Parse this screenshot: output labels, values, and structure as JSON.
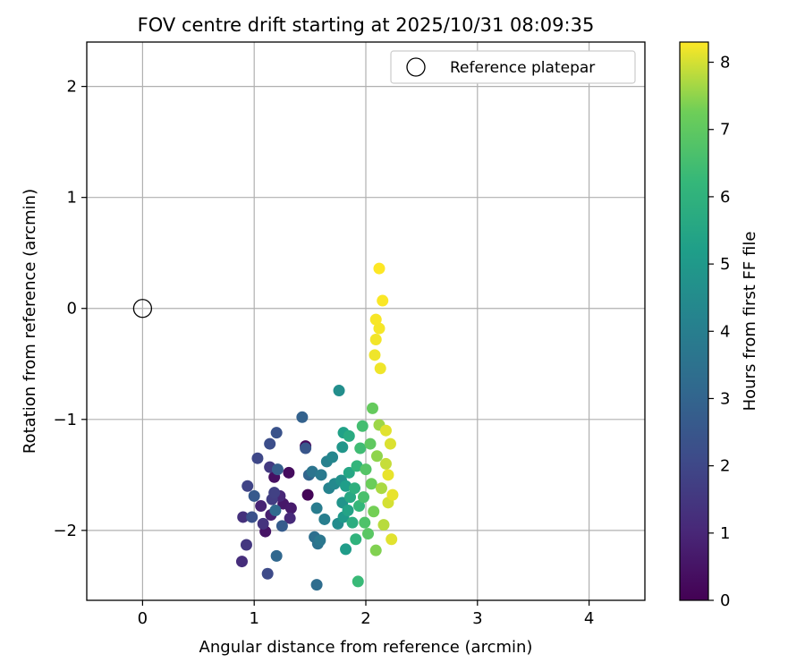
{
  "chart_data": {
    "type": "scatter",
    "title": "FOV centre drift starting at 2025/10/31 08:09:35",
    "xlabel": "Angular distance from reference (arcmin)",
    "ylabel": "Rotation from reference (arcmin)",
    "xlim": [
      -0.5,
      4.5
    ],
    "ylim": [
      -2.63,
      2.4
    ],
    "xticks": [
      0,
      1,
      2,
      3,
      4
    ],
    "xtick_labels": [
      "0",
      "1",
      "2",
      "3",
      "4"
    ],
    "yticks": [
      -2,
      -1,
      0,
      1,
      2
    ],
    "ytick_labels": [
      "−2",
      "−1",
      "0",
      "1",
      "2"
    ],
    "grid": true,
    "legend": {
      "placement": "top-right",
      "entries": [
        "Reference platepar"
      ]
    },
    "colorbar": {
      "label": "Hours from first FF file",
      "colormap": "viridis",
      "range": [
        0,
        8.3
      ],
      "ticks": [
        0,
        1,
        2,
        3,
        4,
        5,
        6,
        7,
        8
      ],
      "tick_labels": [
        "0",
        "1",
        "2",
        "3",
        "4",
        "5",
        "6",
        "7",
        "8"
      ]
    },
    "reference": {
      "name": "Reference platepar",
      "x": 0,
      "y": 0
    },
    "points": [
      {
        "x": 1.48,
        "y": -1.68,
        "t": 0.1
      },
      {
        "x": 1.46,
        "y": -1.24,
        "t": 0.2
      },
      {
        "x": 1.31,
        "y": -1.48,
        "t": 0.3
      },
      {
        "x": 1.18,
        "y": -1.52,
        "t": 0.4
      },
      {
        "x": 1.1,
        "y": -2.01,
        "t": 0.5
      },
      {
        "x": 1.26,
        "y": -1.76,
        "t": 0.6
      },
      {
        "x": 1.33,
        "y": -1.8,
        "t": 0.7
      },
      {
        "x": 1.15,
        "y": -1.86,
        "t": 0.8
      },
      {
        "x": 1.06,
        "y": -1.78,
        "t": 0.9
      },
      {
        "x": 1.23,
        "y": -1.69,
        "t": 1.0
      },
      {
        "x": 1.32,
        "y": -1.89,
        "t": 1.1
      },
      {
        "x": 0.89,
        "y": -2.28,
        "t": 1.2
      },
      {
        "x": 0.9,
        "y": -1.88,
        "t": 1.3
      },
      {
        "x": 1.08,
        "y": -1.94,
        "t": 1.4
      },
      {
        "x": 0.93,
        "y": -2.13,
        "t": 1.5
      },
      {
        "x": 1.14,
        "y": -1.43,
        "t": 1.6
      },
      {
        "x": 1.16,
        "y": -1.72,
        "t": 1.7
      },
      {
        "x": 1.18,
        "y": -1.66,
        "t": 1.8
      },
      {
        "x": 0.94,
        "y": -1.6,
        "t": 1.9
      },
      {
        "x": 1.03,
        "y": -1.35,
        "t": 2.0
      },
      {
        "x": 1.12,
        "y": -2.39,
        "t": 2.1
      },
      {
        "x": 1.14,
        "y": -1.22,
        "t": 2.2
      },
      {
        "x": 0.98,
        "y": -1.88,
        "t": 2.3
      },
      {
        "x": 1.2,
        "y": -1.12,
        "t": 2.4
      },
      {
        "x": 1.46,
        "y": -1.26,
        "t": 2.5
      },
      {
        "x": 1.0,
        "y": -1.69,
        "t": 2.6
      },
      {
        "x": 1.25,
        "y": -1.96,
        "t": 2.7
      },
      {
        "x": 1.21,
        "y": -1.45,
        "t": 2.8
      },
      {
        "x": 1.43,
        "y": -0.98,
        "t": 2.9
      },
      {
        "x": 1.49,
        "y": -1.5,
        "t": 3.0
      },
      {
        "x": 1.2,
        "y": -2.23,
        "t": 3.1
      },
      {
        "x": 1.19,
        "y": -1.82,
        "t": 3.2
      },
      {
        "x": 1.56,
        "y": -2.49,
        "t": 3.3
      },
      {
        "x": 1.54,
        "y": -2.06,
        "t": 3.4
      },
      {
        "x": 1.57,
        "y": -2.12,
        "t": 3.5
      },
      {
        "x": 1.52,
        "y": -1.47,
        "t": 3.6
      },
      {
        "x": 1.59,
        "y": -2.09,
        "t": 3.7
      },
      {
        "x": 1.6,
        "y": -1.5,
        "t": 3.8
      },
      {
        "x": 1.56,
        "y": -1.8,
        "t": 3.9
      },
      {
        "x": 1.63,
        "y": -1.9,
        "t": 4.0
      },
      {
        "x": 1.65,
        "y": -1.38,
        "t": 4.1
      },
      {
        "x": 1.67,
        "y": -1.62,
        "t": 4.2
      },
      {
        "x": 1.7,
        "y": -1.34,
        "t": 4.3
      },
      {
        "x": 1.72,
        "y": -1.58,
        "t": 4.4
      },
      {
        "x": 1.75,
        "y": -1.94,
        "t": 4.5
      },
      {
        "x": 1.76,
        "y": -0.74,
        "t": 4.6
      },
      {
        "x": 1.78,
        "y": -1.55,
        "t": 4.7
      },
      {
        "x": 1.79,
        "y": -1.75,
        "t": 4.8
      },
      {
        "x": 1.79,
        "y": -1.25,
        "t": 4.9
      },
      {
        "x": 1.8,
        "y": -1.88,
        "t": 5.0
      },
      {
        "x": 1.82,
        "y": -2.17,
        "t": 5.1
      },
      {
        "x": 1.82,
        "y": -1.6,
        "t": 5.2
      },
      {
        "x": 1.8,
        "y": -1.12,
        "t": 5.3
      },
      {
        "x": 1.84,
        "y": -1.82,
        "t": 5.4
      },
      {
        "x": 1.85,
        "y": -1.48,
        "t": 5.5
      },
      {
        "x": 1.86,
        "y": -1.7,
        "t": 5.6
      },
      {
        "x": 1.85,
        "y": -1.15,
        "t": 5.7
      },
      {
        "x": 1.88,
        "y": -1.93,
        "t": 5.8
      },
      {
        "x": 1.9,
        "y": -1.62,
        "t": 5.9
      },
      {
        "x": 1.91,
        "y": -2.08,
        "t": 6.0
      },
      {
        "x": 1.92,
        "y": -1.42,
        "t": 6.1
      },
      {
        "x": 1.94,
        "y": -1.78,
        "t": 6.2
      },
      {
        "x": 1.93,
        "y": -2.46,
        "t": 6.3
      },
      {
        "x": 1.95,
        "y": -1.26,
        "t": 6.4
      },
      {
        "x": 1.97,
        "y": -1.06,
        "t": 6.5
      },
      {
        "x": 1.98,
        "y": -1.7,
        "t": 6.6
      },
      {
        "x": 1.99,
        "y": -1.93,
        "t": 6.7
      },
      {
        "x": 2.0,
        "y": -1.45,
        "t": 6.8
      },
      {
        "x": 2.02,
        "y": -2.03,
        "t": 6.9
      },
      {
        "x": 2.04,
        "y": -1.22,
        "t": 7.0
      },
      {
        "x": 2.06,
        "y": -0.9,
        "t": 7.1
      },
      {
        "x": 2.05,
        "y": -1.58,
        "t": 7.2
      },
      {
        "x": 2.07,
        "y": -1.83,
        "t": 7.3
      },
      {
        "x": 2.09,
        "y": -2.18,
        "t": 7.4
      },
      {
        "x": 2.1,
        "y": -1.33,
        "t": 7.5
      },
      {
        "x": 2.12,
        "y": -1.05,
        "t": 7.6
      },
      {
        "x": 2.14,
        "y": -1.62,
        "t": 7.7
      },
      {
        "x": 2.16,
        "y": -1.95,
        "t": 7.8
      },
      {
        "x": 2.18,
        "y": -1.4,
        "t": 7.9
      },
      {
        "x": 2.2,
        "y": -1.75,
        "t": 8.0
      },
      {
        "x": 2.22,
        "y": -1.22,
        "t": 8.05
      },
      {
        "x": 2.23,
        "y": -2.08,
        "t": 8.1
      },
      {
        "x": 2.18,
        "y": -1.1,
        "t": 8.1
      },
      {
        "x": 2.24,
        "y": -1.68,
        "t": 8.15
      },
      {
        "x": 2.2,
        "y": -1.5,
        "t": 8.15
      },
      {
        "x": 2.08,
        "y": -0.42,
        "t": 8.2
      },
      {
        "x": 2.13,
        "y": -0.54,
        "t": 8.2
      },
      {
        "x": 2.09,
        "y": -0.28,
        "t": 8.22
      },
      {
        "x": 2.12,
        "y": -0.18,
        "t": 8.24
      },
      {
        "x": 2.09,
        "y": -0.1,
        "t": 8.26
      },
      {
        "x": 2.15,
        "y": 0.07,
        "t": 8.28
      },
      {
        "x": 2.12,
        "y": 0.36,
        "t": 8.3
      }
    ]
  }
}
